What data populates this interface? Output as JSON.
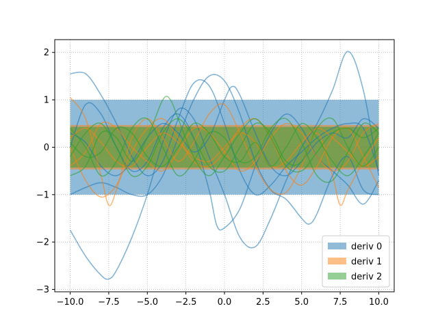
{
  "chart_data": {
    "type": "line",
    "title": "",
    "xlabel": "",
    "ylabel": "",
    "xlim": [
      -11,
      11
    ],
    "ylim": [
      -3.05,
      2.27
    ],
    "grid": true,
    "legend_position": "lower-right",
    "xticks": [
      -10,
      -7.5,
      -5,
      -2.5,
      0,
      2.5,
      5,
      7.5,
      10
    ],
    "xtick_labels": [
      "−10.0",
      "−7.5",
      "−5.0",
      "−2.5",
      "0.0",
      "2.5",
      "5.0",
      "7.5",
      "10.0"
    ],
    "yticks": [
      -3,
      -2,
      -1,
      0,
      1,
      2
    ],
    "ytick_labels": [
      "−3",
      "−2",
      "−1",
      "0",
      "1",
      "2"
    ],
    "bands": [
      {
        "name": "deriv 0",
        "color": "#1f77b4",
        "x_range": [
          -10,
          10
        ],
        "y_range": [
          -1,
          1
        ]
      },
      {
        "name": "deriv 1",
        "color": "#ff7f0e",
        "x_range": [
          -10,
          10
        ],
        "y_range": [
          -0.47,
          0.47
        ]
      },
      {
        "name": "deriv 2",
        "color": "#2ca02c",
        "x_range": [
          -10,
          10
        ],
        "y_range": [
          -0.43,
          0.43
        ]
      }
    ],
    "series": [
      {
        "group": "deriv 0",
        "color": "#1f77b4",
        "x": [
          -10,
          -9,
          -8,
          -7.5,
          -7,
          -6,
          -5,
          -4,
          -3,
          -2,
          -1,
          0,
          1,
          2,
          3,
          4,
          5,
          6,
          7,
          8,
          9,
          10
        ],
        "y": [
          -1.75,
          -2.3,
          -2.7,
          -2.78,
          -2.6,
          -1.9,
          -1.0,
          0.1,
          0.8,
          0.6,
          -0.2,
          -1.0,
          -1.9,
          -2.1,
          -1.5,
          -0.7,
          0.0,
          0.5,
          1.2,
          2.02,
          1.2,
          -0.6
        ]
      },
      {
        "group": "deriv 0",
        "color": "#1f77b4",
        "x": [
          -10,
          -9,
          -8,
          -7,
          -6,
          -5,
          -4,
          -3,
          -2,
          -1,
          0,
          1,
          2,
          3,
          4,
          5,
          6,
          7,
          8,
          9,
          10
        ],
        "y": [
          1.55,
          1.55,
          1.1,
          0.5,
          -0.2,
          -0.6,
          -0.3,
          0.6,
          1.35,
          1.3,
          0.5,
          -0.5,
          -1.0,
          -0.8,
          -0.4,
          -0.1,
          0.2,
          0.4,
          0.5,
          0.4,
          -0.5
        ]
      },
      {
        "group": "deriv 0",
        "color": "#1f77b4",
        "x": [
          -10,
          -9,
          -8,
          -7,
          -6,
          -5,
          -4,
          -3,
          -2,
          -1,
          0,
          1,
          2,
          3,
          4,
          5,
          5.5,
          6,
          7,
          8,
          9,
          10
        ],
        "y": [
          -1.0,
          -0.85,
          -0.75,
          -0.85,
          -1.0,
          -1.0,
          -0.6,
          0.2,
          1.0,
          1.5,
          1.4,
          0.7,
          -0.3,
          -0.9,
          -1.1,
          -1.5,
          -1.62,
          -1.4,
          -0.6,
          -0.2,
          -0.9,
          -1.0
        ]
      },
      {
        "group": "deriv 0",
        "color": "#1f77b4",
        "x": [
          -10,
          -9,
          -8,
          -7,
          -6,
          -5,
          -4,
          -3,
          -2,
          -1,
          -0.5,
          0,
          1,
          2,
          3,
          4,
          5,
          6,
          7,
          8,
          9,
          10
        ],
        "y": [
          0.0,
          0.9,
          0.7,
          0.0,
          -0.5,
          -0.3,
          0.4,
          0.7,
          0.2,
          -0.9,
          -1.65,
          -1.7,
          -1.3,
          -0.4,
          0.3,
          0.7,
          0.4,
          -0.2,
          -0.5,
          -0.8,
          -1.2,
          -0.7
        ]
      },
      {
        "group": "deriv 0",
        "color": "#1f77b4",
        "x": [
          -10,
          -9,
          -8,
          -7,
          -6,
          -5,
          -4,
          -3,
          -2,
          -1,
          0,
          0.5,
          1,
          2,
          3,
          4,
          5,
          6,
          7,
          8,
          9,
          10
        ],
        "y": [
          0.3,
          0.1,
          -0.4,
          -0.6,
          -0.3,
          0.2,
          0.5,
          0.3,
          -0.1,
          0.2,
          1.0,
          1.28,
          1.1,
          0.3,
          -0.4,
          -0.6,
          -0.3,
          0.1,
          0.3,
          0.2,
          0.6,
          0.4
        ]
      },
      {
        "group": "deriv 1",
        "color": "#ff7f0e",
        "x": [
          -10,
          -9,
          -8,
          -7.5,
          -7,
          -6,
          -5,
          -4,
          -3,
          -2,
          -1,
          0,
          1,
          2,
          3,
          4,
          5,
          6,
          7,
          7.5,
          8,
          9,
          10
        ],
        "y": [
          1.05,
          0.6,
          -0.6,
          -1.22,
          -0.9,
          0.2,
          0.6,
          0.2,
          -0.3,
          0.1,
          0.7,
          0.9,
          0.3,
          -0.4,
          -0.9,
          -0.95,
          -0.4,
          0.3,
          -0.6,
          -1.22,
          -0.9,
          -0.3,
          0.2
        ]
      },
      {
        "group": "deriv 1",
        "color": "#ff7f0e",
        "x": [
          -10,
          -9,
          -8,
          -7,
          -6,
          -5,
          -4,
          -3,
          -2,
          -1,
          0,
          1,
          2,
          3,
          4,
          5,
          6,
          7,
          8,
          9,
          10
        ],
        "y": [
          0.0,
          -0.7,
          -1.05,
          -0.8,
          -0.1,
          0.4,
          0.6,
          0.2,
          -0.3,
          -0.4,
          -0.1,
          0.4,
          0.6,
          0.2,
          -0.5,
          -0.8,
          -0.4,
          0.2,
          0.4,
          -0.2,
          -0.85
        ]
      },
      {
        "group": "deriv 1",
        "color": "#ff7f0e",
        "x": [
          -10,
          -9,
          -8,
          -7,
          -6,
          -5,
          -4,
          -3,
          -2,
          -1,
          0,
          1,
          2,
          3,
          4,
          5,
          6,
          7,
          8,
          9,
          10
        ],
        "y": [
          -0.4,
          -0.1,
          0.5,
          0.4,
          0.0,
          -0.3,
          -0.5,
          -0.1,
          0.4,
          0.3,
          -0.1,
          -0.5,
          -0.3,
          0.2,
          0.5,
          0.3,
          -0.2,
          -0.5,
          -0.3,
          0.3,
          0.5
        ]
      },
      {
        "group": "deriv 1",
        "color": "#ff7f0e",
        "x": [
          -10,
          -9,
          -8,
          -7,
          -6,
          -5,
          -4,
          -3,
          -2,
          -1,
          0,
          1,
          2,
          3,
          4,
          5,
          6,
          7,
          8,
          9,
          10
        ],
        "y": [
          0.2,
          0.4,
          0.1,
          -0.3,
          -0.4,
          0.0,
          0.3,
          0.1,
          -0.2,
          -0.3,
          0.0,
          0.3,
          0.1,
          -0.4,
          -0.3,
          0.1,
          0.4,
          0.2,
          -0.1,
          -0.4,
          -0.2
        ]
      },
      {
        "group": "deriv 2",
        "color": "#2ca02c",
        "x": [
          -10,
          -9,
          -8,
          -7,
          -6,
          -5,
          -4,
          -3.5,
          -3,
          -2,
          -1,
          0,
          1,
          2,
          3,
          4,
          5,
          6,
          7,
          8,
          9,
          10
        ],
        "y": [
          -0.6,
          -0.4,
          0.3,
          0.2,
          -0.3,
          0.2,
          1.0,
          1.0,
          0.6,
          -0.2,
          -0.6,
          -0.2,
          0.3,
          0.6,
          0.2,
          -0.4,
          -0.5,
          -0.1,
          0.3,
          0.4,
          0.2,
          0.4
        ]
      },
      {
        "group": "deriv 2",
        "color": "#2ca02c",
        "x": [
          -10,
          -9,
          -8,
          -7,
          -6,
          -5,
          -4,
          -3,
          -2,
          -1,
          0,
          1,
          2,
          3,
          4,
          5,
          6,
          7,
          8,
          9,
          10
        ],
        "y": [
          0.4,
          0.0,
          -0.6,
          -0.3,
          0.4,
          0.6,
          0.0,
          -0.6,
          -0.3,
          0.3,
          0.2,
          -0.3,
          -0.2,
          0.4,
          0.6,
          0.1,
          -0.6,
          -0.7,
          -0.1,
          0.5,
          0.3
        ]
      },
      {
        "group": "deriv 2",
        "color": "#2ca02c",
        "x": [
          -10,
          -9,
          -8,
          -7,
          -6,
          -5,
          -4,
          -3,
          -2,
          -1,
          0,
          1,
          2,
          3,
          4,
          5,
          6,
          7,
          8,
          9,
          10
        ],
        "y": [
          -0.2,
          0.3,
          0.5,
          0.0,
          -0.6,
          -0.4,
          0.3,
          0.6,
          0.2,
          -0.4,
          -0.5,
          0.0,
          0.5,
          0.3,
          -0.3,
          -0.3,
          0.4,
          0.6,
          0.0,
          -0.4,
          0.0
        ]
      },
      {
        "group": "deriv 2",
        "color": "#2ca02c",
        "x": [
          -10,
          -9,
          -8,
          -7,
          -6,
          -5,
          -4,
          -3,
          -2,
          -1,
          0,
          1,
          2,
          3,
          4,
          5,
          6,
          7,
          8,
          9,
          10
        ],
        "y": [
          0.1,
          -0.2,
          -0.1,
          0.4,
          0.3,
          -0.2,
          -0.4,
          0.0,
          0.5,
          0.3,
          -0.2,
          -0.3,
          0.1,
          -0.4,
          0.0,
          0.5,
          0.2,
          -0.3,
          -0.6,
          -0.2,
          0.3
        ]
      }
    ],
    "legend": [
      {
        "label": "deriv 0",
        "color": "#1f77b4"
      },
      {
        "label": "deriv 1",
        "color": "#ff7f0e"
      },
      {
        "label": "deriv 2",
        "color": "#2ca02c"
      }
    ]
  }
}
